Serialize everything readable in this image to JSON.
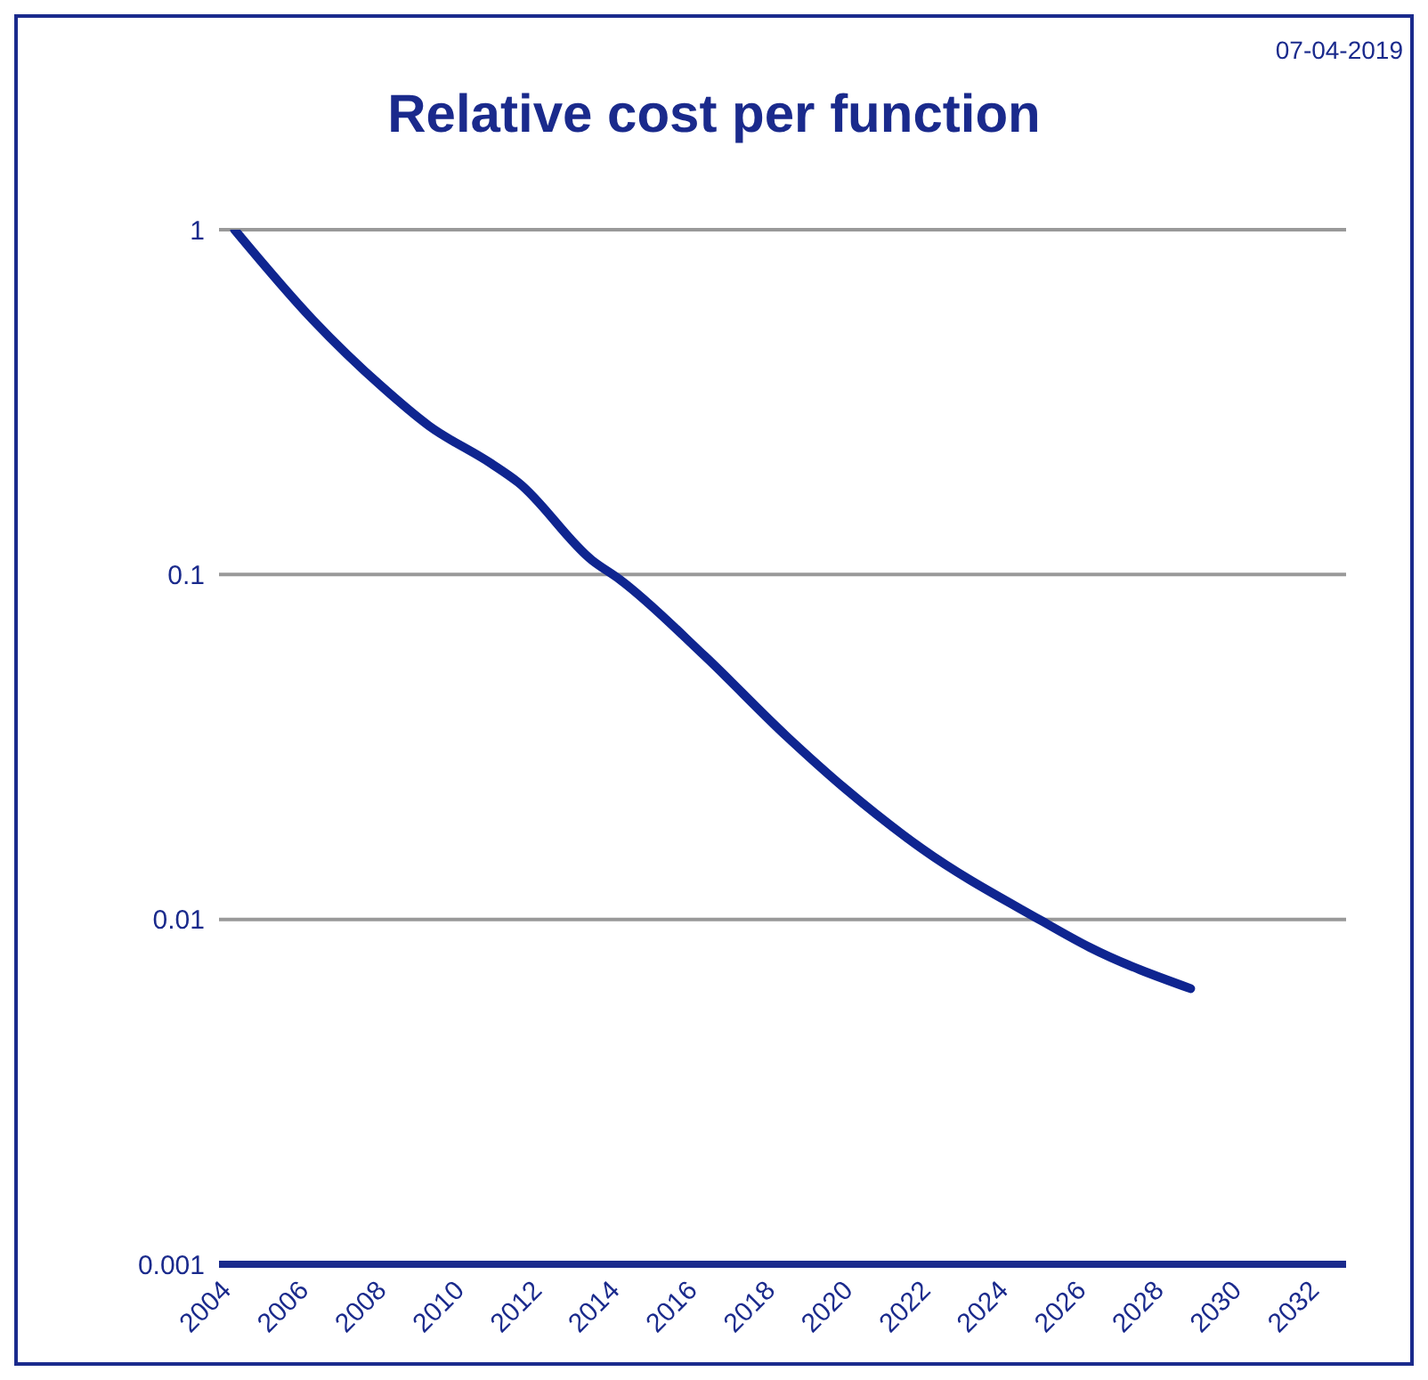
{
  "chart_data": {
    "type": "line",
    "title": "Relative cost per function",
    "annotations": [
      "07-04-2019"
    ],
    "x": [
      2004.4,
      2006.4,
      2008.2,
      2009.4,
      2011,
      2011.7,
      2013.6,
      2014.3,
      2016.5,
      2018.6,
      2020.1,
      2022.1,
      2025.1,
      2026.4,
      2029
    ],
    "series": [
      {
        "color": "#0f2590",
        "values": [
          1,
          0.55,
          0.35,
          0.27,
          0.21,
          0.185,
          0.11,
          0.097,
          0.058,
          0.034,
          0.024,
          0.016,
          0.01,
          0.0083,
          0.0063
        ]
      }
    ],
    "log": "y",
    "xlim": [
      2004,
      2033
    ],
    "xticks": [
      2004,
      2006,
      2008,
      2010,
      2012,
      2014,
      2016,
      2018,
      2020,
      2022,
      2024,
      2026,
      2028,
      2030,
      2032
    ],
    "ylim": [
      0.001,
      1
    ],
    "yticks": [
      0.001,
      0.01,
      0.1,
      1
    ],
    "grid": "y",
    "legend": false,
    "marker": "none",
    "line_style": "solid"
  }
}
